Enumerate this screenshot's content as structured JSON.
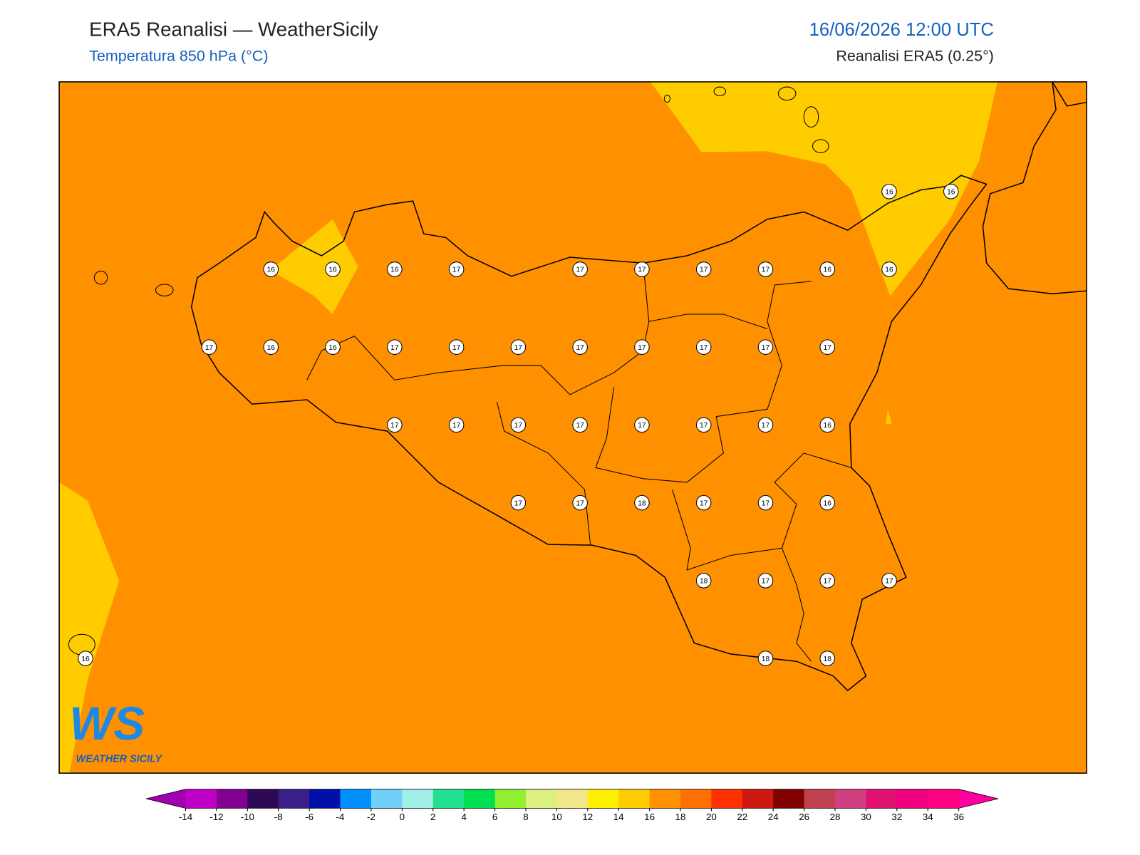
{
  "header": {
    "title": "ERA5 Reanalisi — WeatherSicily",
    "subtitle": "Temperatura 850 hPa (°C)",
    "datetime": "16/06/2026 12:00 UTC",
    "source": "Reanalisi ERA5 (0.25°)"
  },
  "map": {
    "values": [
      16,
      16,
      16,
      16,
      16,
      17,
      17,
      17,
      17,
      17,
      16,
      16,
      17,
      16,
      16,
      17,
      17,
      17,
      17,
      17,
      17,
      17,
      17,
      17,
      17,
      17,
      17,
      17,
      17,
      17,
      16,
      17,
      17,
      18,
      17,
      17,
      16,
      18,
      17,
      17,
      17,
      16,
      18,
      18
    ]
  },
  "logo": {
    "mark": "WS",
    "text": "WEATHER SICILY"
  },
  "colorbar": {
    "ticks": [
      -14,
      -12,
      -10,
      -8,
      -6,
      -4,
      -2,
      0,
      2,
      4,
      6,
      8,
      10,
      12,
      14,
      16,
      18,
      20,
      22,
      24,
      26,
      28,
      30,
      32,
      34,
      36
    ],
    "colors": [
      "#c000c8",
      "#800090",
      "#2e0a55",
      "#3a1f8a",
      "#0010a8",
      "#0090ff",
      "#70d0f8",
      "#a0f0e8",
      "#20e090",
      "#00e050",
      "#90f030",
      "#dcf080",
      "#f0e888",
      "#fff000",
      "#ffcc00",
      "#ff9100",
      "#ff7000",
      "#ff3000",
      "#cc1810",
      "#800000",
      "#c04050",
      "#d04080",
      "#e01070",
      "#f00080",
      "#ff0080"
    ],
    "extend_colors": [
      "#a000b0",
      "#ff00a0"
    ]
  }
}
